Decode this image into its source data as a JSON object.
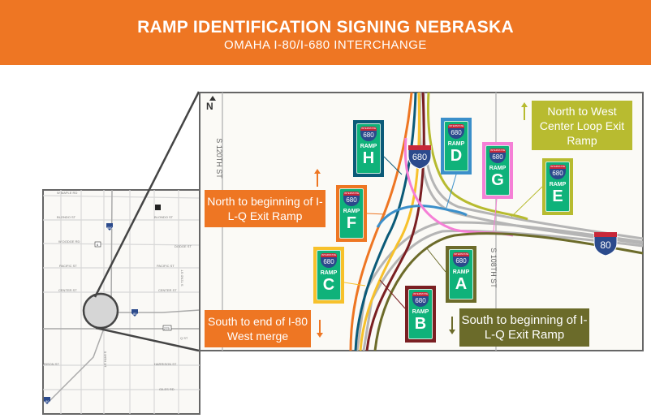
{
  "header": {
    "title": "RAMP IDENTIFICATION SIGNING NEBRASKA",
    "subtitle": "OMAHA I-80/I-680 INTERCHANGE"
  },
  "overview_map": {
    "streets": [
      "W MAPLE RD",
      "BLONDO ST",
      "BLONDO ST",
      "W DODGE RD",
      "DODGE ST",
      "PACIFIC ST",
      "PACIFIC ST",
      "CENTER ST",
      "CENTER ST",
      "S 72ND ST",
      "Q ST",
      "RISON ST",
      "HARRISON ST",
      "S 84TH ST",
      "GILES RD"
    ],
    "shields": [
      "680",
      "6",
      "80",
      "275",
      "80"
    ]
  },
  "detail_map": {
    "north_label": "N",
    "streets": {
      "west": "S 120TH ST",
      "east": "S 108TH ST"
    },
    "shields": {
      "i680": "680",
      "i80": "80",
      "shield_top": "INTERSTATE"
    },
    "sign_route": "680",
    "sign_word": "RAMP",
    "signs": [
      {
        "letter": "H",
        "color": "#0b5a78"
      },
      {
        "letter": "F",
        "color": "#ee7623"
      },
      {
        "letter": "C",
        "color": "#f7c12b"
      },
      {
        "letter": "B",
        "color": "#7a1f22"
      },
      {
        "letter": "D",
        "color": "#3b8fca"
      },
      {
        "letter": "G",
        "color": "#f57fd6"
      },
      {
        "letter": "E",
        "color": "#b7bb30"
      },
      {
        "letter": "A",
        "color": "#6c6b2a"
      }
    ],
    "notes": {
      "north_f": "North to beginning of I-L-Q Exit Ramp",
      "south_c": "South to end of I-80 West merge",
      "north_e": "North to West Center Loop Exit Ramp",
      "south_a": "South to beginning of I-L-Q Exit Ramp"
    },
    "note_colors": {
      "orange": "#ee7623",
      "lime": "#b8bb30",
      "olive": "#6b6b2a"
    }
  }
}
